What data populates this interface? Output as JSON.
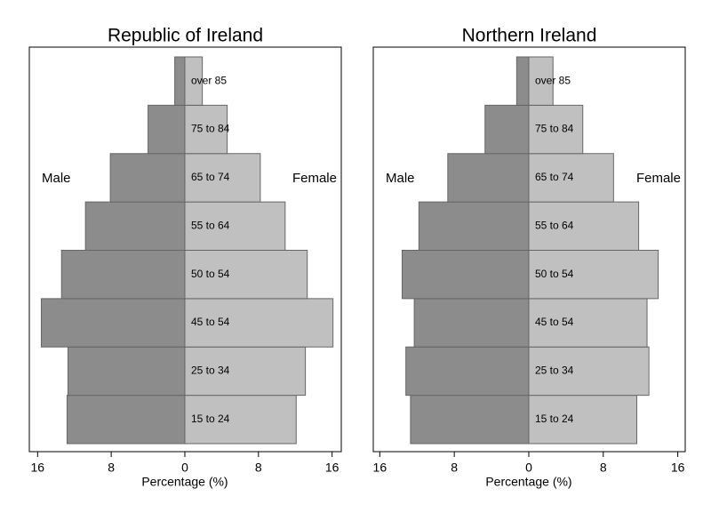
{
  "chart_data": [
    {
      "type": "pyramid",
      "title": "Republic of Ireland",
      "xlabel": "Percentage (%)",
      "left_label": "Male",
      "right_label": "Female",
      "categories": [
        "15 to 24",
        "25 to 34",
        "45 to 54",
        "50 to 54",
        "55 to 64",
        "65 to 74",
        "75 to 84",
        "over 85"
      ],
      "series": [
        {
          "name": "Male",
          "color": "#8c8c8c",
          "values": [
            -12.8,
            -12.7,
            -15.6,
            -13.4,
            -10.8,
            -8.1,
            -4.0,
            -1.1
          ]
        },
        {
          "name": "Female",
          "color": "#c0c0c0",
          "values": [
            12.1,
            13.1,
            16.1,
            13.3,
            10.9,
            8.2,
            4.6,
            1.9
          ]
        }
      ],
      "xlim": [
        -16.9,
        17
      ],
      "xticks": [
        {
          "value": -16,
          "label": "16"
        },
        {
          "value": -8,
          "label": "8"
        },
        0,
        8,
        16
      ]
    },
    {
      "type": "pyramid",
      "title": "Northern Ireland",
      "xlabel": "Percentage (%)",
      "left_label": "Male",
      "right_label": "Female",
      "categories": [
        "15 to 24",
        "25 to 34",
        "45 to 54",
        "50 to 54",
        "55 to 64",
        "65 to 74",
        "75 to 84",
        "over 85"
      ],
      "series": [
        {
          "name": "Male",
          "color": "#8c8c8c",
          "values": [
            -12.7,
            -13.2,
            -12.3,
            -13.6,
            -11.8,
            -8.7,
            -4.7,
            -1.3
          ]
        },
        {
          "name": "Female",
          "color": "#c0c0c0",
          "values": [
            11.6,
            12.9,
            12.7,
            13.9,
            11.8,
            9.1,
            5.8,
            2.6
          ]
        }
      ],
      "xlim": [
        -16.7,
        16.8
      ],
      "xticks": [
        {
          "value": -16,
          "label": "16"
        },
        {
          "value": -8,
          "label": "8"
        },
        0,
        8,
        16
      ]
    }
  ]
}
